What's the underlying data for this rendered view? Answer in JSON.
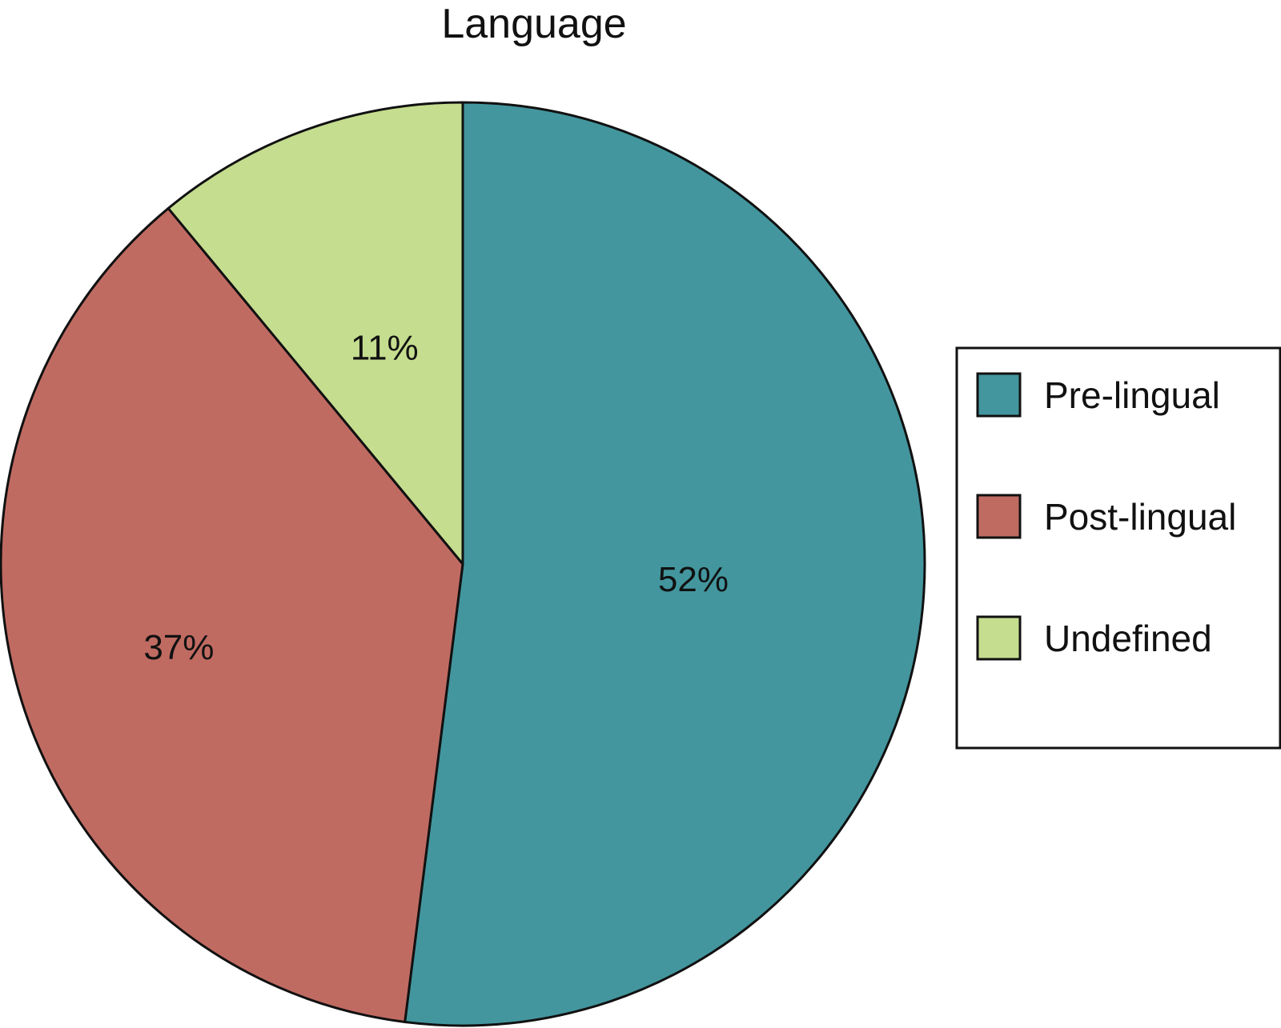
{
  "chart_data": {
    "type": "pie",
    "title": "Language",
    "slices": [
      {
        "label": "Pre-lingual",
        "value": 52,
        "display": "52%",
        "color": "#43969e"
      },
      {
        "label": "Post-lingual",
        "value": 37,
        "display": "37%",
        "color": "#c06b62"
      },
      {
        "label": "Undefined",
        "value": 11,
        "display": "11%",
        "color": "#c5dd8f"
      }
    ],
    "start": "12 o'clock",
    "direction": "clockwise",
    "legend_position": "right"
  }
}
